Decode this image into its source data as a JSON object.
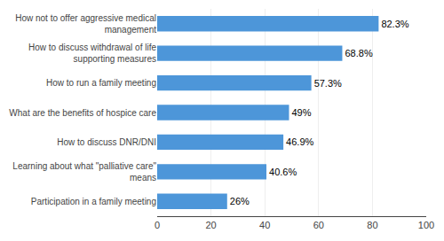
{
  "chart_data": {
    "type": "bar",
    "orientation": "horizontal",
    "categories": [
      "Participation in a family meeting",
      "Learning about what \"palliative care\"\nmeans",
      "How to discuss DNR/DNI",
      "What are the benefits of hospice care",
      "How to run a family meeting",
      "How to discuss withdrawal of life\nsupporting measures",
      "How not to offer aggressive medical\nmanagement"
    ],
    "values": [
      26,
      40.6,
      46.9,
      49,
      57.3,
      68.8,
      82.3
    ],
    "value_labels": [
      "26%",
      "40.6%",
      "46.9%",
      "49%",
      "57.3%",
      "68.8%",
      "82.3%"
    ],
    "data_labels": true,
    "color": "#4d96d9",
    "xlim": [
      0,
      100
    ],
    "xticks": [
      0,
      20,
      40,
      60,
      80,
      100
    ],
    "grid": true
  }
}
